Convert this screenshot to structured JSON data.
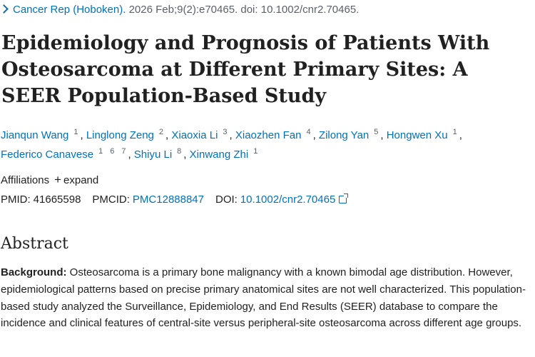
{
  "journal": {
    "name": "Cancer Rep (Hoboken).",
    "citation": " 2026 Feb;9(2):e70465. doi: 10.1002/cnr2.70465."
  },
  "article": {
    "title": "Epidemiology and Prognosis of Patients With Osteosarcoma at Different Primary Sites: A SEER Population-Based Study"
  },
  "authors": [
    {
      "name": "Jianqun Wang",
      "affs": [
        "1"
      ]
    },
    {
      "name": "Linglong Zeng",
      "affs": [
        "2"
      ]
    },
    {
      "name": "Xiaoxia Li",
      "affs": [
        "3"
      ]
    },
    {
      "name": "Xiaozhen Fan",
      "affs": [
        "4"
      ]
    },
    {
      "name": "Zilong Yan",
      "affs": [
        "5"
      ]
    },
    {
      "name": "Hongwen Xu",
      "affs": [
        "1"
      ]
    },
    {
      "name": "Federico Canavese",
      "affs": [
        "1",
        "6",
        "7"
      ]
    },
    {
      "name": "Shiyu Li",
      "affs": [
        "8"
      ]
    },
    {
      "name": "Xinwang Zhi",
      "affs": [
        "1"
      ]
    }
  ],
  "affiliations": {
    "label": "Affiliations",
    "expand_label": "expand"
  },
  "identifiers": {
    "pmid_label": "PMID:",
    "pmid": "41665598",
    "pmcid_label": "PMCID:",
    "pmcid": "PMC12888847",
    "doi_label": "DOI:",
    "doi": "10.1002/cnr2.70465"
  },
  "abstract": {
    "heading": "Abstract",
    "background_label": "Background:",
    "background_text": " Osteosarcoma is a primary bone malignancy with a known bimodal age distribution. However, epidemiological patterns based on precise primary anatomical sites are not well characterized. This population-based study analyzed the Surveillance, Epidemiology, and End Results (SEER) database to compare the incidence and clinical features of central-site versus peripheral-site osteosarcoma across different age groups."
  }
}
